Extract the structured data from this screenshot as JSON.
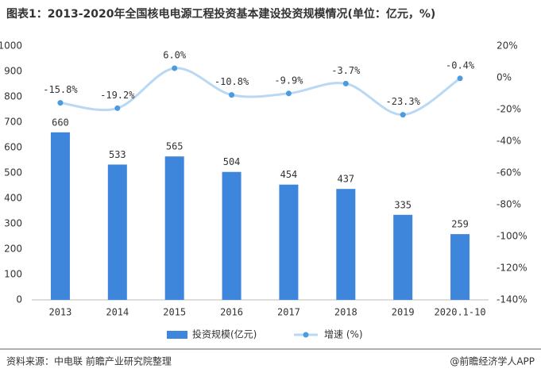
{
  "chart_data": {
    "type": "bar_line",
    "title": "图表1：2013-2020年全国核电电源工程投资基本建设投资规模情况(单位：亿元，%)",
    "categories": [
      "2013",
      "2014",
      "2015",
      "2016",
      "2017",
      "2018",
      "2019",
      "2020.1-10"
    ],
    "series": [
      {
        "name": "投资规模(亿元)",
        "type": "bar",
        "color": "#3d86dc",
        "values": [
          660,
          533,
          565,
          504,
          454,
          437,
          335,
          259
        ]
      },
      {
        "name": "增速 (%)",
        "type": "line",
        "axis": "y2",
        "color": "#b9d8f3",
        "marker_color": "#4a9be0",
        "values": [
          -15.8,
          -19.2,
          6.0,
          -10.8,
          -9.9,
          -3.7,
          -23.3,
          -0.4
        ],
        "value_labels": [
          "-15.8%",
          "-19.2%",
          "6.0%",
          "-10.8%",
          "-9.9%",
          "-3.7%",
          "-23.3%",
          "-0.4%"
        ]
      }
    ],
    "ylim": [
      0,
      1000
    ],
    "yticks": [
      0,
      100,
      200,
      300,
      400,
      500,
      600,
      700,
      800,
      900,
      1000
    ],
    "y2lim": [
      -140,
      20
    ],
    "y2ticks": [
      {
        "value": -140,
        "label": "-140%"
      },
      {
        "value": -120,
        "label": "-120%"
      },
      {
        "value": -100,
        "label": "-100%"
      },
      {
        "value": -80,
        "label": "-80%"
      },
      {
        "value": -60,
        "label": "-60%"
      },
      {
        "value": -40,
        "label": "-40%"
      },
      {
        "value": -20,
        "label": "-20%"
      },
      {
        "value": 0,
        "label": "0%"
      },
      {
        "value": 20,
        "label": "20%"
      }
    ],
    "source": "资料来源：中电联 前瞻产业研究院整理",
    "credit": "@前瞻经济学人APP"
  }
}
